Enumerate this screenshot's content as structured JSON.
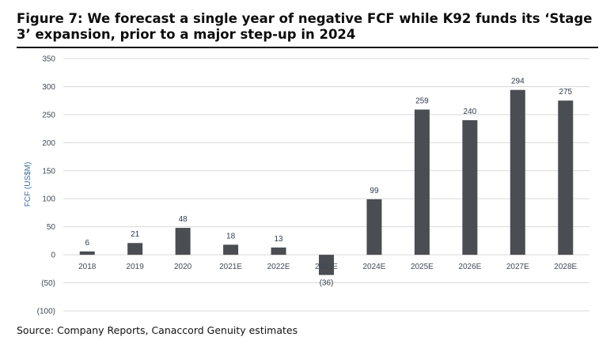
{
  "figure": {
    "title": "Figure 7: We forecast a single year of negative FCF while K92 funds its ‘Stage 3’ expansion, prior to a major step-up in 2024",
    "source": "Source: Company Reports, Canaccord Genuity estimates"
  },
  "colors": {
    "bar": "#4a4d52",
    "grid": "#d9d9d9",
    "rule": "#111111"
  },
  "chart_data": {
    "type": "bar",
    "categories": [
      "2018",
      "2019",
      "2020",
      "2021E",
      "2022E",
      "2023E",
      "2024E",
      "2025E",
      "2026E",
      "2027E",
      "2028E"
    ],
    "values": [
      6,
      21,
      48,
      18,
      13,
      -36,
      99,
      259,
      240,
      294,
      275
    ],
    "data_labels": [
      "6",
      "21",
      "48",
      "18",
      "13",
      "(36)",
      "99",
      "259",
      "240",
      "294",
      "275"
    ],
    "ylabel": "FCF (US$M)",
    "xlabel": "",
    "ylim": [
      -100,
      350
    ],
    "yticks": [
      350,
      300,
      250,
      200,
      150,
      100,
      50,
      0,
      -50,
      -100
    ],
    "ytick_labels": [
      "350",
      "300",
      "250",
      "200",
      "150",
      "100",
      "50",
      "0",
      "(50)",
      "(100)"
    ],
    "grid": true,
    "legend": "none"
  }
}
